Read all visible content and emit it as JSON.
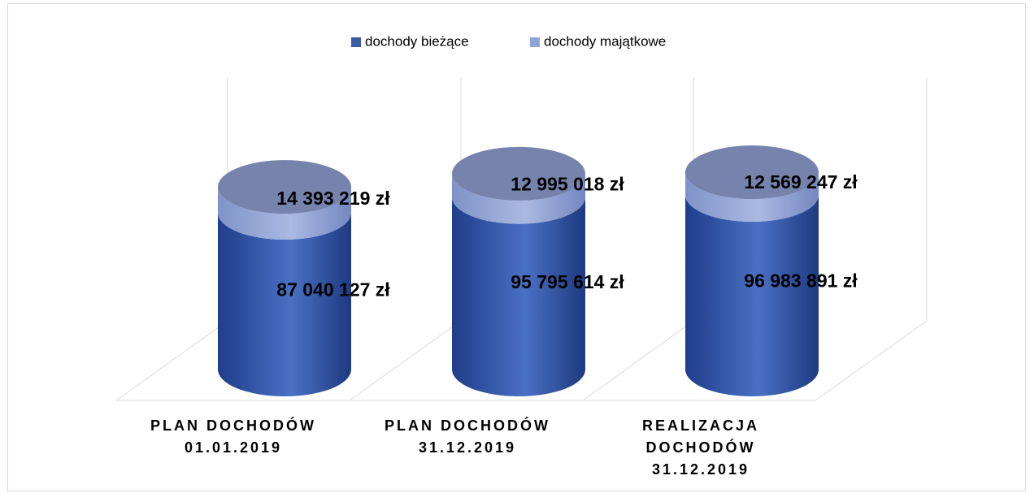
{
  "chart_data": {
    "type": "cylinder",
    "categories": [
      [
        "PLAN DOCHODÓW",
        "01.01.2019"
      ],
      [
        "PLAN DOCHODÓW",
        "31.12.2019"
      ],
      [
        "REALIZACJA",
        "DOCHODÓW",
        "31.12.2019"
      ]
    ],
    "series": [
      {
        "name": "dochody bieżące",
        "color": "#3a5ba8",
        "values": [
          87040127,
          95795614,
          96983891
        ],
        "value_labels": [
          "87 040 127 zł",
          "95 795 614 zł",
          "96 983 891 zł"
        ]
      },
      {
        "name": "dochody majątkowe",
        "color": "#8fa3d6",
        "values": [
          14393219,
          12995018,
          12569247
        ],
        "value_labels": [
          "14 393 219 zł",
          "12 995 018 zł",
          "12 569 247 zł"
        ]
      }
    ],
    "ylim": [
      0,
      120000000
    ],
    "stacked": true,
    "legend": "top"
  }
}
